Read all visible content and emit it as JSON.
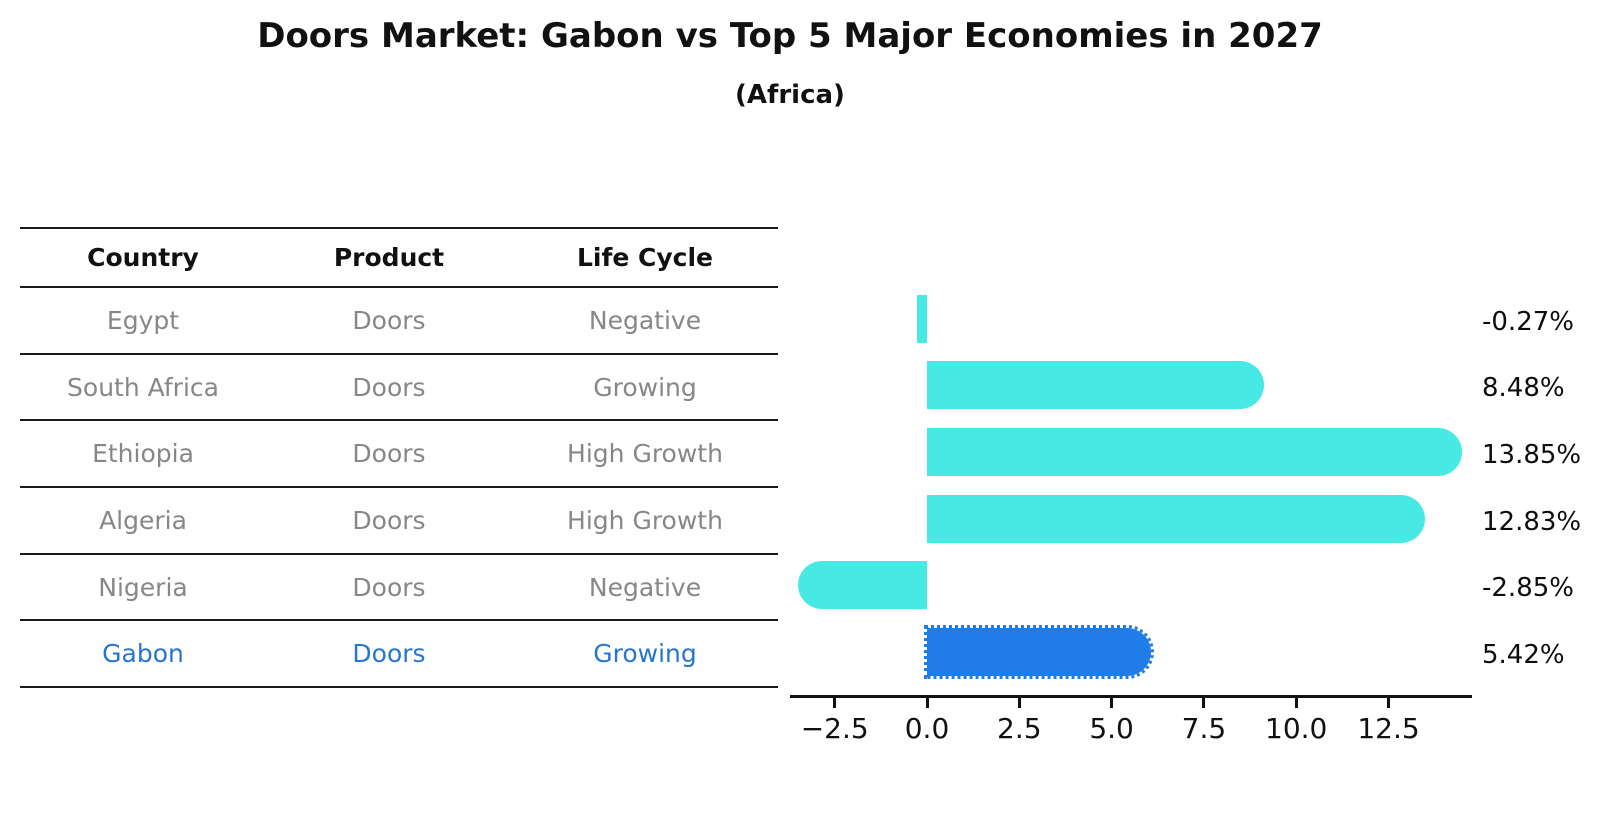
{
  "title": "Doors Market: Gabon vs Top 5 Major Economies in 2027",
  "subtitle": "(Africa)",
  "table": {
    "headers": [
      "Country",
      "Product",
      "Life Cycle"
    ],
    "rows": [
      {
        "country": "Egypt",
        "product": "Doors",
        "life_cycle": "Negative",
        "highlighted": false
      },
      {
        "country": "South Africa",
        "product": "Doors",
        "life_cycle": "Growing",
        "highlighted": false
      },
      {
        "country": "Ethiopia",
        "product": "Doors",
        "life_cycle": "High Growth",
        "highlighted": false
      },
      {
        "country": "Algeria",
        "product": "Doors",
        "life_cycle": "High Growth",
        "highlighted": false
      },
      {
        "country": "Nigeria",
        "product": "Doors",
        "life_cycle": "Negative",
        "highlighted": false
      },
      {
        "country": "Gabon",
        "product": "Doors",
        "life_cycle": "Growing",
        "highlighted": true
      }
    ]
  },
  "chart_data": {
    "type": "bar",
    "orientation": "horizontal",
    "title": "Doors Market: Gabon vs Top 5 Major Economies in 2027",
    "subtitle": "(Africa)",
    "categories": [
      "Egypt",
      "South Africa",
      "Ethiopia",
      "Algeria",
      "Nigeria",
      "Gabon"
    ],
    "values": [
      -0.27,
      8.48,
      13.85,
      12.83,
      -2.85,
      5.42
    ],
    "value_labels": [
      "-0.27%",
      "8.48%",
      "13.85%",
      "12.83%",
      "-2.85%",
      "5.42%"
    ],
    "x_ticks": [
      {
        "value": -2.5,
        "label": "−2.5"
      },
      {
        "value": 0,
        "label": "0.0"
      },
      {
        "value": 2.5,
        "label": "2.5"
      },
      {
        "value": 5,
        "label": "5.0"
      },
      {
        "value": 7.5,
        "label": "7.5"
      },
      {
        "value": 10,
        "label": "10.0"
      },
      {
        "value": 12.5,
        "label": "12.5"
      }
    ],
    "xlim": [
      -3.74,
      14.75
    ],
    "grid": false,
    "legend": false,
    "highlight_category": "Gabon",
    "bar_color": "#47E9E4",
    "highlight_bar_color": "#1F7CE8",
    "highlight_text_color": "#2876CC",
    "row_text_color": "#878787",
    "axis_color": "#111111"
  }
}
